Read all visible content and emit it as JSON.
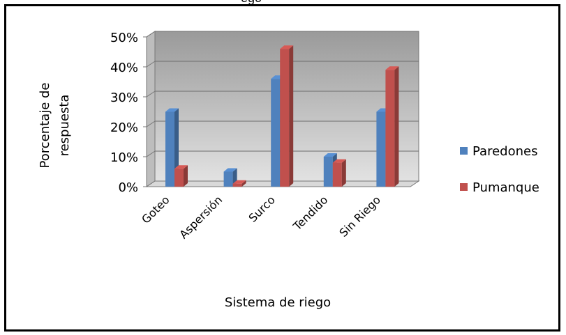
{
  "partial_title": "ego",
  "chart_data": {
    "type": "bar",
    "title": "",
    "xlabel": "Sistema de riego",
    "ylabel_lines": [
      "Porcentaje  de",
      "respuesta"
    ],
    "categories": [
      "Goteo",
      "Aspersión",
      "Surco",
      "Tendido",
      "Sin Riego"
    ],
    "series": [
      {
        "name": "Paredones",
        "values": [
          25,
          5,
          36,
          10,
          25
        ],
        "color": "#4F81BD"
      },
      {
        "name": "Pumanque",
        "values": [
          6,
          1,
          46,
          8,
          39
        ],
        "color": "#C0504D"
      }
    ],
    "yticks": [
      "0%",
      "10%",
      "20%",
      "30%",
      "40%",
      "50%"
    ],
    "ylim": [
      0,
      50
    ],
    "grid": true,
    "legend_position": "right"
  }
}
